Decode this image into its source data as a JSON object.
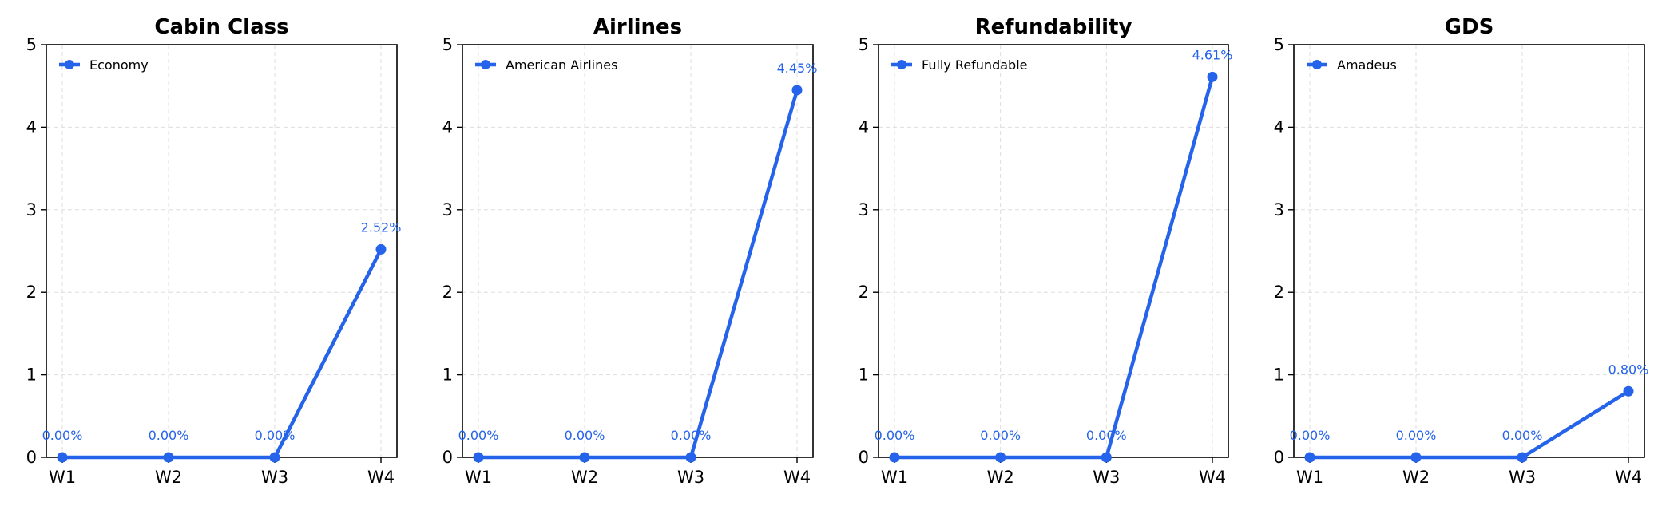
{
  "colors": {
    "series": "#2563eb",
    "axis": "#000000",
    "grid": "#dddddd"
  },
  "chart_data": [
    {
      "type": "line",
      "title": "Cabin Class",
      "categories": [
        "W1",
        "W2",
        "W3",
        "W4"
      ],
      "series": [
        {
          "name": "Economy",
          "values": [
            0.0,
            0.0,
            0.0,
            2.52
          ]
        }
      ],
      "data_labels": [
        "0.00%",
        "0.00%",
        "0.00%",
        "2.52%"
      ],
      "ylim": [
        0,
        5
      ],
      "yticks": [
        "0",
        "1",
        "2",
        "3",
        "4",
        "5"
      ],
      "grid": true,
      "legend": "top-left"
    },
    {
      "type": "line",
      "title": "Airlines",
      "categories": [
        "W1",
        "W2",
        "W3",
        "W4"
      ],
      "series": [
        {
          "name": "American Airlines",
          "values": [
            0.0,
            0.0,
            0.0,
            4.45
          ]
        }
      ],
      "data_labels": [
        "0.00%",
        "0.00%",
        "0.00%",
        "4.45%"
      ],
      "ylim": [
        0,
        5
      ],
      "yticks": [
        "0",
        "1",
        "2",
        "3",
        "4",
        "5"
      ],
      "grid": true,
      "legend": "top-left"
    },
    {
      "type": "line",
      "title": "Refundability",
      "categories": [
        "W1",
        "W2",
        "W3",
        "W4"
      ],
      "series": [
        {
          "name": "Fully Refundable",
          "values": [
            0.0,
            0.0,
            0.0,
            4.61
          ]
        }
      ],
      "data_labels": [
        "0.00%",
        "0.00%",
        "0.00%",
        "4.61%"
      ],
      "ylim": [
        0,
        5
      ],
      "yticks": [
        "0",
        "1",
        "2",
        "3",
        "4",
        "5"
      ],
      "grid": true,
      "legend": "top-left"
    },
    {
      "type": "line",
      "title": "GDS",
      "categories": [
        "W1",
        "W2",
        "W3",
        "W4"
      ],
      "series": [
        {
          "name": "Amadeus",
          "values": [
            0.0,
            0.0,
            0.0,
            0.8
          ]
        }
      ],
      "data_labels": [
        "0.00%",
        "0.00%",
        "0.00%",
        "0.80%"
      ],
      "ylim": [
        0,
        5
      ],
      "yticks": [
        "0",
        "1",
        "2",
        "3",
        "4",
        "5"
      ],
      "grid": true,
      "legend": "top-left"
    }
  ]
}
